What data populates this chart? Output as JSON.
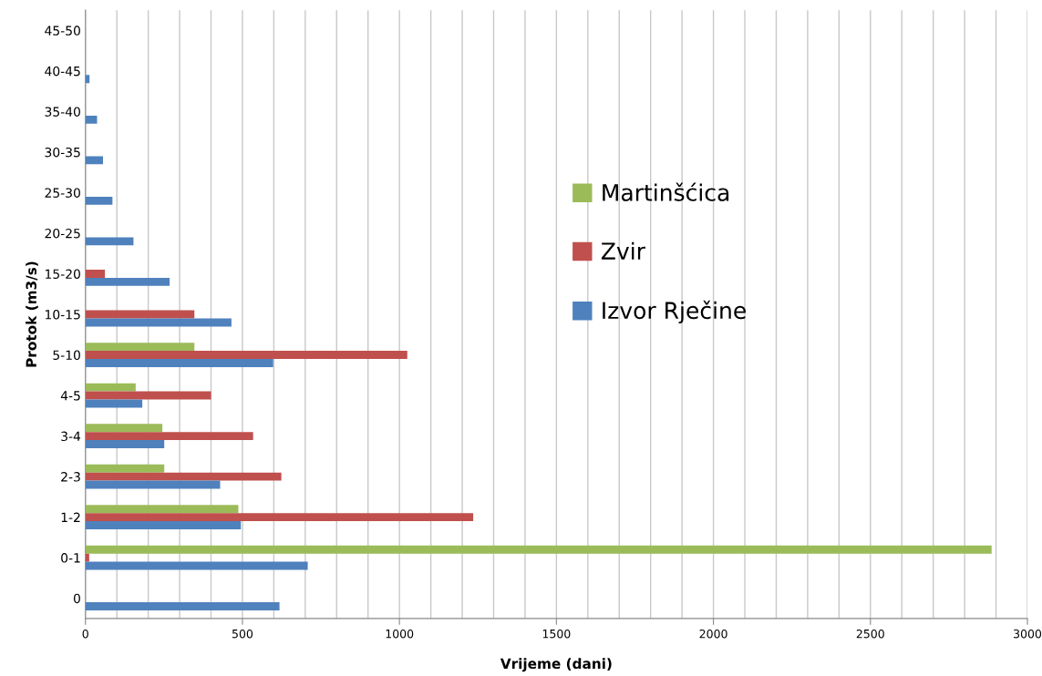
{
  "chart_data": {
    "type": "bar",
    "orientation": "horizontal",
    "xlabel": "Vrijeme (dani)",
    "ylabel": "Protok (m3/s)",
    "categories": [
      "45-50",
      "40-45",
      "35-40",
      "30-35",
      "25-30",
      "20-25",
      "15-20",
      "10-15",
      "5-10",
      "4-5",
      "3-4",
      "2-3",
      "1-2",
      "0-1",
      "0"
    ],
    "series": [
      {
        "name": "Martinšćica",
        "color": "#9bbb59",
        "values": [
          0,
          0,
          0,
          0,
          0,
          0,
          0,
          0,
          347,
          160,
          245,
          251,
          487,
          2886,
          0
        ]
      },
      {
        "name": "Zvir",
        "color": "#c0504d",
        "values": [
          0,
          0,
          0,
          0,
          0,
          0,
          62,
          347,
          1025,
          400,
          534,
          624,
          1235,
          12,
          0
        ]
      },
      {
        "name": "Izvor Rječine",
        "color": "#4f81bd",
        "values": [
          0,
          13,
          37,
          56,
          86,
          153,
          268,
          465,
          598,
          181,
          251,
          429,
          495,
          708,
          618
        ]
      }
    ],
    "xlim": [
      0,
      3000
    ],
    "xticks": [
      0,
      {
        "value": 100,
        "label": null
      },
      {
        "value": 200,
        "label": null
      },
      {
        "value": 300,
        "label": null
      },
      {
        "value": 400,
        "label": null
      },
      500,
      {
        "value": 600,
        "label": null
      },
      {
        "value": 700,
        "label": null
      },
      {
        "value": 800,
        "label": null
      },
      {
        "value": 900,
        "label": null
      },
      1000,
      {
        "value": 1100,
        "label": null
      },
      {
        "value": 1200,
        "label": null
      },
      {
        "value": 1300,
        "label": null
      },
      {
        "value": 1400,
        "label": null
      },
      1500,
      {
        "value": 1600,
        "label": null
      },
      {
        "value": 1700,
        "label": null
      },
      {
        "value": 1800,
        "label": null
      },
      {
        "value": 1900,
        "label": null
      },
      2000,
      {
        "value": 2100,
        "label": null
      },
      {
        "value": 2200,
        "label": null
      },
      {
        "value": 2300,
        "label": null
      },
      {
        "value": 2400,
        "label": null
      },
      2500,
      {
        "value": 2600,
        "label": null
      },
      {
        "value": 2700,
        "label": null
      },
      {
        "value": 2800,
        "label": null
      },
      {
        "value": 2900,
        "label": null
      },
      3000
    ],
    "grid": "x",
    "legend": "center"
  }
}
